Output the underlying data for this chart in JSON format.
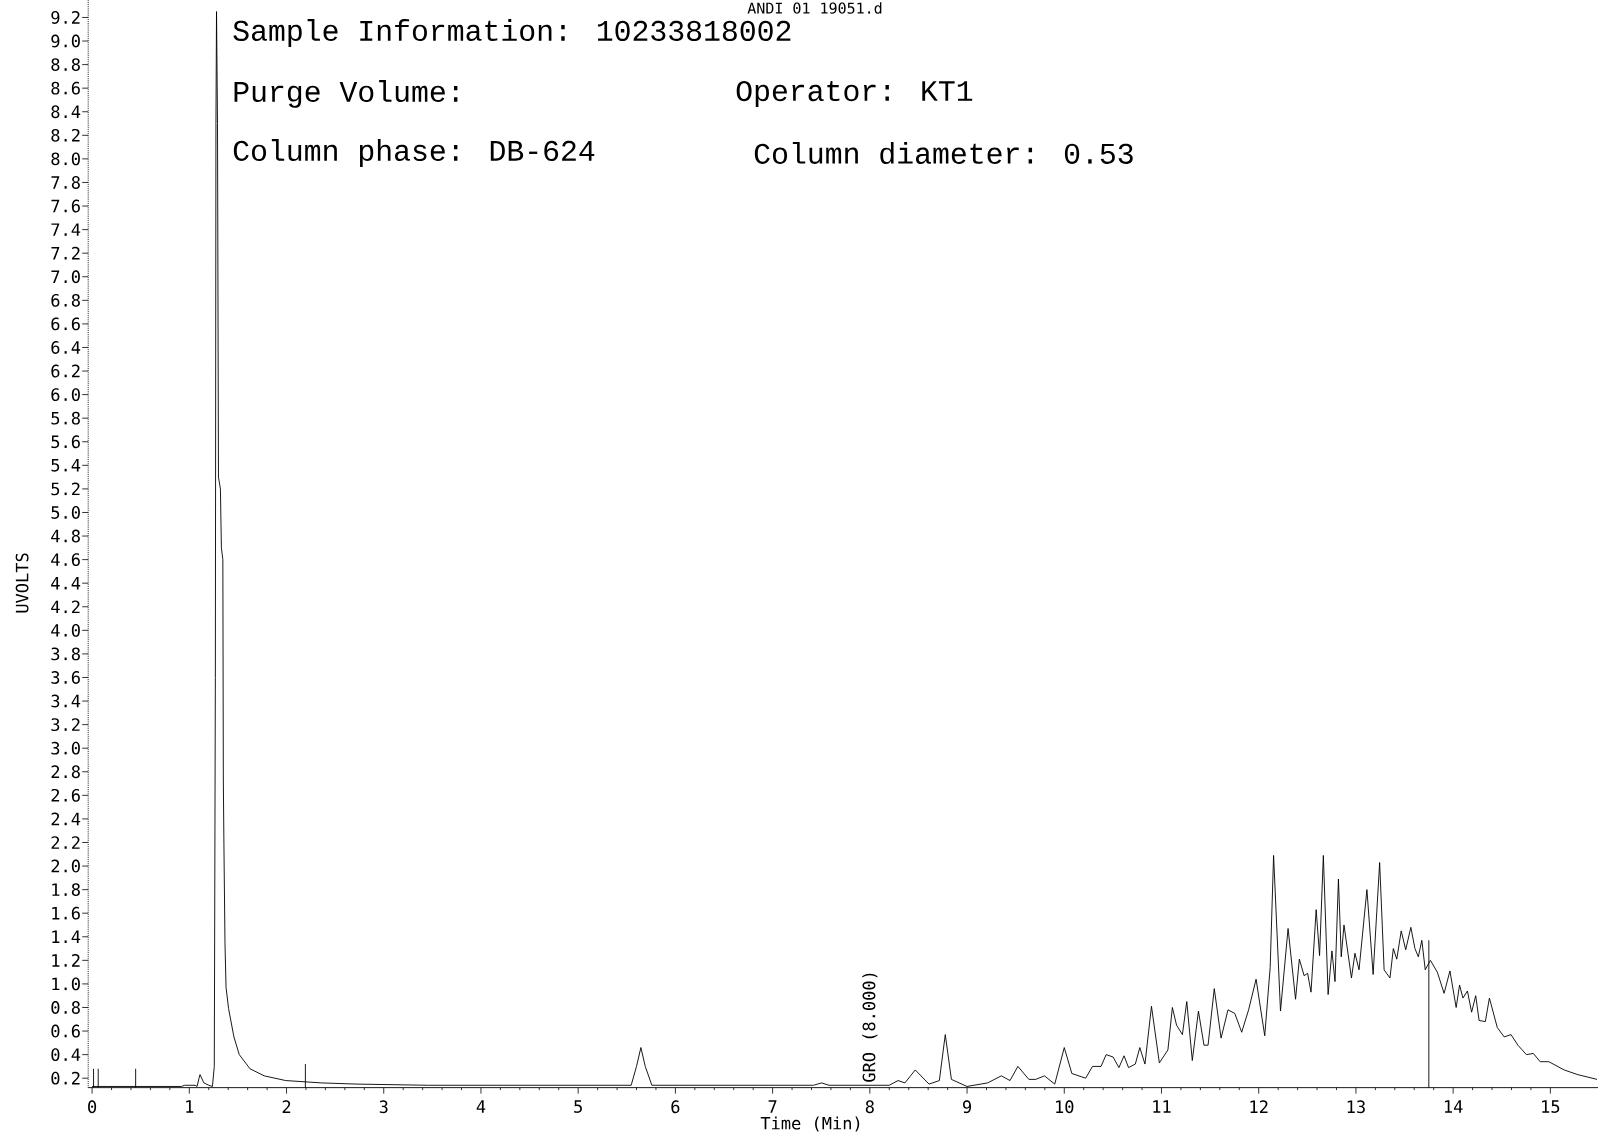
{
  "chart_data": {
    "type": "line",
    "title": "ANDI 01 19051.d",
    "xlabel": "Time (Min)",
    "ylabel": "UVOLTS",
    "annotations": [
      "Sample Information: 10233818002",
      "Purge Volume:",
      "Operator: KT1",
      "Column phase: DB-624",
      "Column diameter: 0.53",
      {
        "text": "GRO (8.000)",
        "x": 8,
        "y": 0.16
      }
    ],
    "xlim": [
      -0.04,
      15.49
    ],
    "ylim": [
      0.12,
      9.35
    ],
    "xticks": [
      0,
      1,
      2,
      3,
      4,
      5,
      6,
      7,
      8,
      9,
      10,
      11,
      12,
      13,
      14,
      15
    ],
    "yticks": [
      0.2,
      0.4,
      0.6,
      0.8,
      {
        "value": 1,
        "label": "1.0"
      },
      1.2,
      1.4,
      1.6,
      1.8,
      {
        "value": 2,
        "label": "2.0"
      },
      2.2,
      2.4,
      2.6,
      2.8,
      {
        "value": 3,
        "label": "3.0"
      },
      3.2,
      3.4,
      3.6,
      3.8,
      {
        "value": 4,
        "label": "4.0"
      },
      4.2,
      4.4,
      4.6,
      4.8,
      {
        "value": 5,
        "label": "5.0"
      },
      5.2,
      5.4,
      5.6,
      5.8,
      {
        "value": 6,
        "label": "6.0"
      },
      6.2,
      6.4,
      6.6,
      6.8,
      {
        "value": 7,
        "label": "7.0"
      },
      7.2,
      7.4,
      7.6,
      7.8,
      {
        "value": 8,
        "label": "8.0"
      },
      8.2,
      8.4,
      8.6,
      8.8,
      {
        "value": 9,
        "label": "9.0"
      },
      9.2
    ],
    "series": [
      {
        "color": "#000000",
        "x": [
          0,
          0.92,
          0.95,
          1.06,
          1.08,
          1.1,
          1.11,
          1.15,
          1.2,
          1.238,
          1.257,
          1.268,
          1.274,
          1.28,
          1.29,
          1.3,
          1.32,
          1.33,
          1.345,
          1.35,
          1.356,
          1.367,
          1.378,
          1.404,
          1.459,
          1.514,
          1.624,
          1.771,
          1.991,
          2.359,
          2.726,
          3.461,
          4.5,
          5.5,
          5.545,
          5.6,
          5.645,
          5.69,
          5.758,
          7.42,
          7.504,
          7.58,
          8.2,
          8.29,
          8.361,
          8.467,
          8.609,
          8.715,
          8.776,
          8.839,
          8.999,
          9.211,
          9.353,
          9.442,
          9.523,
          9.636,
          9.707,
          9.796,
          9.902,
          10.0,
          10.078,
          10.22,
          10.29,
          10.378,
          10.431,
          10.502,
          10.562,
          10.615,
          10.661,
          10.731,
          10.777,
          10.83,
          10.897,
          10.978,
          11.066,
          11.112,
          11.155,
          11.215,
          11.26,
          11.317,
          11.38,
          11.437,
          11.479,
          11.543,
          11.613,
          11.684,
          11.754,
          11.825,
          11.896,
          11.973,
          12.062,
          12.118,
          12.153,
          12.224,
          12.302,
          12.379,
          12.418,
          12.467,
          12.503,
          12.538,
          12.591,
          12.626,
          12.665,
          12.714,
          12.753,
          12.785,
          12.82,
          12.849,
          12.877,
          12.954,
          12.99,
          13.032,
          13.113,
          13.177,
          13.244,
          13.29,
          13.35,
          13.385,
          13.42,
          13.466,
          13.512,
          13.565,
          13.607,
          13.642,
          13.678,
          13.713,
          13.766,
          13.837,
          13.907,
          13.967,
          14.031,
          14.066,
          14.101,
          14.147,
          14.19,
          14.232,
          14.267,
          14.331,
          14.373,
          14.454,
          14.525,
          14.595,
          14.666,
          14.754,
          14.825,
          14.895,
          14.984,
          15.142,
          15.283,
          15.48
        ],
        "values": [
          0.13,
          0.13,
          0.14,
          0.14,
          0.13,
          0.2,
          0.23,
          0.16,
          0.14,
          0.13,
          0.3,
          3.6,
          8.3,
          9.25,
          8.3,
          5.3,
          5.2,
          4.7,
          4.6,
          2.73,
          2.19,
          1.34,
          0.97,
          0.79,
          0.55,
          0.4,
          0.28,
          0.22,
          0.18,
          0.16,
          0.15,
          0.14,
          0.14,
          0.14,
          0.14,
          0.3,
          0.46,
          0.3,
          0.14,
          0.14,
          0.16,
          0.14,
          0.14,
          0.18,
          0.16,
          0.27,
          0.15,
          0.18,
          0.57,
          0.19,
          0.13,
          0.16,
          0.22,
          0.18,
          0.3,
          0.19,
          0.19,
          0.22,
          0.15,
          0.46,
          0.24,
          0.2,
          0.3,
          0.3,
          0.4,
          0.38,
          0.29,
          0.39,
          0.29,
          0.32,
          0.46,
          0.32,
          0.81,
          0.33,
          0.44,
          0.8,
          0.65,
          0.57,
          0.85,
          0.35,
          0.77,
          0.48,
          0.48,
          0.96,
          0.54,
          0.78,
          0.75,
          0.59,
          0.78,
          1.04,
          0.56,
          1.14,
          2.09,
          0.77,
          1.47,
          0.87,
          1.21,
          1.07,
          1.09,
          0.93,
          1.63,
          1.24,
          2.09,
          0.91,
          1.28,
          1.02,
          1.89,
          1.23,
          1.5,
          1.05,
          1.26,
          1.12,
          1.8,
          1.08,
          2.03,
          1.12,
          1.05,
          1.3,
          1.21,
          1.45,
          1.29,
          1.48,
          1.3,
          1.23,
          1.37,
          1.12,
          1.2,
          1.1,
          0.92,
          1.11,
          0.8,
          0.99,
          0.88,
          0.94,
          0.76,
          0.9,
          0.69,
          0.68,
          0.88,
          0.63,
          0.55,
          0.57,
          0.48,
          0.4,
          0.41,
          0.34,
          0.34,
          0.27,
          0.23,
          0.19
        ]
      },
      {
        "color": "#000000",
        "x": [
          13.75,
          13.75
        ],
        "values": [
          0.12,
          1.37
        ]
      },
      {
        "color": "#000000",
        "x": [
          0.015,
          0.015
        ],
        "values": [
          0.12,
          0.28
        ]
      },
      {
        "color": "#000000",
        "x": [
          0.063,
          0.063
        ],
        "values": [
          0.12,
          0.28
        ]
      },
      {
        "color": "#000000",
        "x": [
          0.448,
          0.448
        ],
        "values": [
          0.12,
          0.28
        ]
      },
      {
        "color": "#000000",
        "x": [
          2.194,
          2.194
        ],
        "values": [
          0.12,
          0.32
        ]
      }
    ]
  }
}
